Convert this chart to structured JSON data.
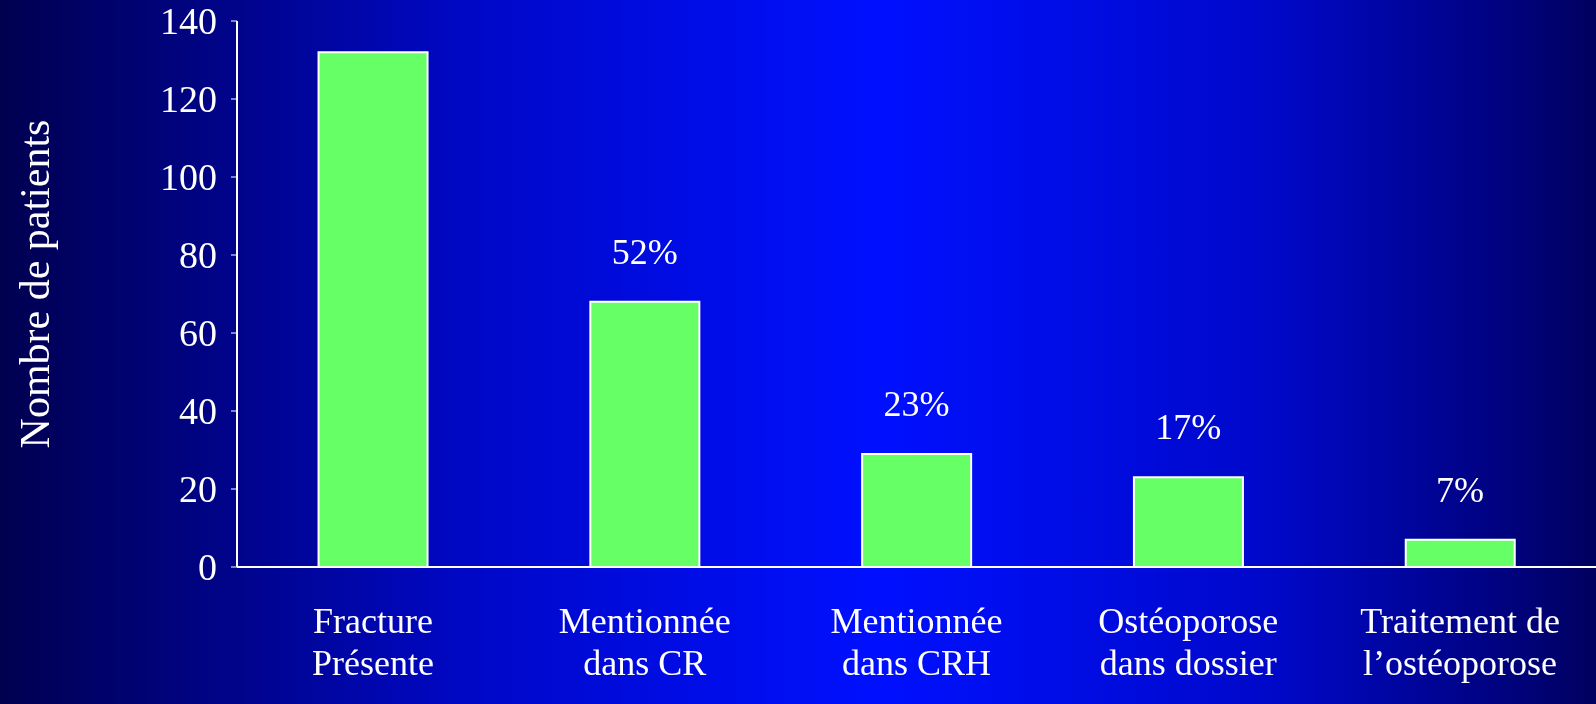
{
  "chart_data": {
    "type": "bar",
    "ylabel": "Nombre de patients",
    "categories": [
      "Fracture\nPrésente",
      "Mentionnée\ndans CR",
      "Mentionnée\ndans CRH",
      "Ostéoporose\ndans dossier",
      "Traitement de\nl’ostéoporose"
    ],
    "values": [
      132,
      68,
      29,
      23,
      7
    ],
    "annotations": [
      {
        "text": "52%",
        "x": "Mentionnée\ndans CR",
        "y": 68
      },
      {
        "text": "23%",
        "x": "Mentionnée\ndans CRH",
        "y": 29
      },
      {
        "text": "17%",
        "x": "Ostéoporose\ndans dossier",
        "y": 23
      },
      {
        "text": "7%",
        "x": "Traitement de\nl’ostéoporose",
        "y": 7
      }
    ],
    "color": "#66ff66",
    "ylim": [
      0,
      140
    ],
    "yticks": [
      0,
      20,
      40,
      60,
      80,
      100,
      120,
      140
    ],
    "grid": false,
    "legend": false
  }
}
